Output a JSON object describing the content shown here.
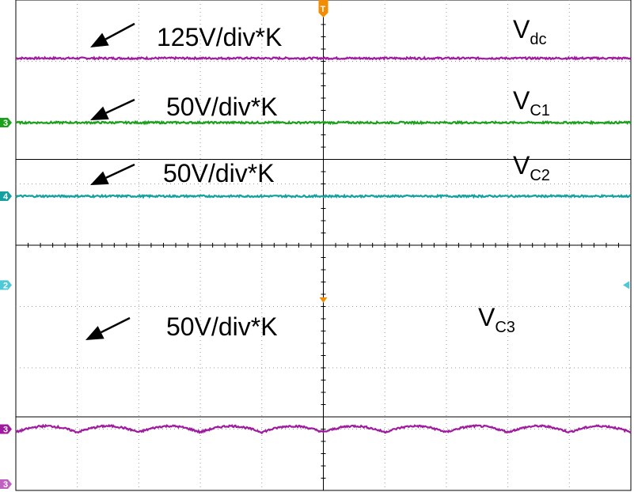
{
  "chart_data": {
    "type": "line",
    "title": "",
    "grid": true,
    "divisions": {
      "x": 10,
      "y": 8
    },
    "ylim": [
      0,
      8
    ],
    "trigger_marker": "T",
    "series": [
      {
        "name": "Vdc",
        "label_main": "V",
        "label_sub": "dc",
        "scale": "125V/div*K",
        "color": "#a01aa0",
        "channel_marker": "",
        "level_div": 7.05,
        "ripple_div": 0.0,
        "ripple_cycles": 0
      },
      {
        "name": "VC1",
        "label_main": "V",
        "label_sub": "C1",
        "scale": "50V/div*K",
        "color": "#1aa01a",
        "channel_marker": "3",
        "level_div": 6.0,
        "ripple_div": 0.0,
        "ripple_cycles": 0
      },
      {
        "name": "VC2",
        "label_main": "V",
        "label_sub": "C2",
        "scale": "50V/div*K",
        "color": "#12a0a0",
        "channel_marker": "4",
        "level_div": 4.8,
        "ripple_div": 0.0,
        "ripple_cycles": 0
      },
      {
        "name": "VC3",
        "label_main": "V",
        "label_sub": "C3",
        "scale": "50V/div*K",
        "color": "#a01aa0",
        "channel_marker": "3",
        "level_div": 1.0,
        "ripple_div": 0.1,
        "ripple_cycles": 10
      }
    ],
    "reference_marker": {
      "label": "2",
      "level_div": 3.35,
      "color": "#4fc8d8"
    }
  }
}
